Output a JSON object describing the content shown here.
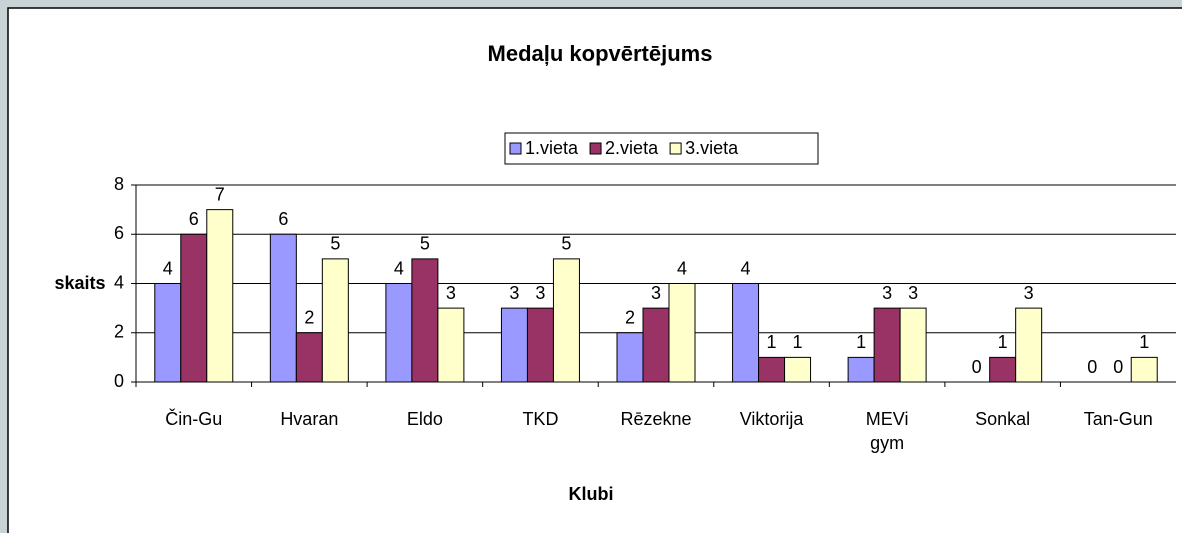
{
  "chart_data": {
    "type": "bar",
    "title": "Medaļu kopvērtējums",
    "x_label": "Klubi",
    "y_label": "skaits",
    "categories": [
      "Čin-Gu",
      "Hvaran",
      "Eldo",
      "TKD",
      "Rēzekne",
      "Viktorija",
      "MEVi gym",
      "Sonkal",
      "Tan-Gun"
    ],
    "series": [
      {
        "name": "1.vieta",
        "color": "#9999ff",
        "values": [
          4,
          6,
          4,
          3,
          2,
          4,
          1,
          0,
          0
        ]
      },
      {
        "name": "2.vieta",
        "color": "#993366",
        "values": [
          6,
          2,
          5,
          3,
          3,
          1,
          3,
          1,
          0
        ]
      },
      {
        "name": "3.vieta",
        "color": "#ffffcc",
        "values": [
          7,
          5,
          3,
          5,
          4,
          1,
          3,
          3,
          1
        ]
      }
    ],
    "ylim": [
      0,
      8
    ],
    "yticks": [
      0,
      2,
      4,
      6,
      8
    ],
    "grid": true,
    "legend": "top"
  }
}
